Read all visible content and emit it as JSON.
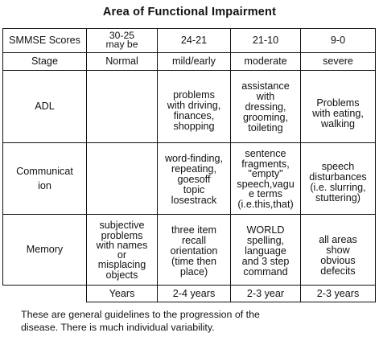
{
  "title": "Area of Functional Impairment",
  "header": {
    "row_label": "SMMSE Scores",
    "scores": [
      "30-25\nmay be",
      "24-21",
      "21-10",
      "9-0"
    ]
  },
  "stage": {
    "label": "Stage",
    "values": [
      "Normal",
      "mild/early",
      "moderate",
      "severe"
    ]
  },
  "adl": {
    "label": "ADL",
    "values": [
      "",
      "problems\nwith driving,\nfinances,\nshopping",
      "assistance\nwith\ndressing,\ngrooming,\ntoileting",
      "Problems\nwith eating,\nwalking"
    ]
  },
  "communication": {
    "label": "Communicat\nion",
    "values": [
      "",
      "word-finding,\nrepeating,\ngoesoff\ntopic\nlosestrack",
      "sentence\nfragments,\n\"empty\"\nspeech,vagu\ne terms\n(i.e.this,that)",
      "speech\ndisturbances\n(i.e. slurring,\nstuttering)"
    ]
  },
  "memory": {
    "label": "Memory",
    "values": [
      "subjective\nproblems\nwith names\nor\nmisplacing\nobjects",
      "three item\nrecall\norientation\n(time then\nplace)",
      "WORLD\nspelling,\nlanguage\nand 3 step\ncommand",
      "all areas\nshow\nobvious\ndefecits"
    ]
  },
  "years": {
    "values": [
      "Years",
      "2-4 years",
      "2-3 year",
      "2-3 years"
    ]
  },
  "footnote": "These are general guidelines to the progression of the\ndisease. There is much individual variability."
}
